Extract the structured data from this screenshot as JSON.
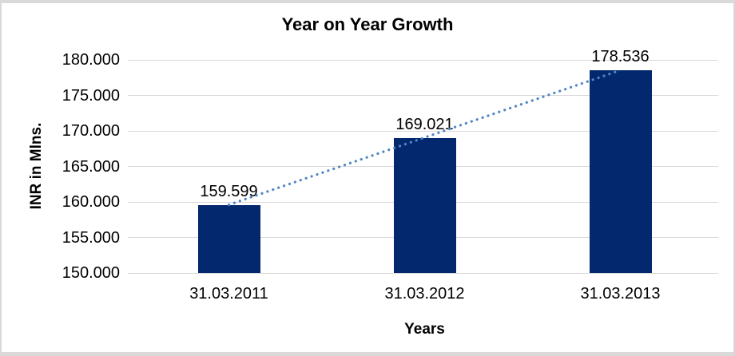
{
  "frame": {
    "background": "#ffffff",
    "border_color": "#d9d9d9"
  },
  "chart_data": {
    "type": "bar",
    "title": "Year on Year Growth",
    "xlabel": "Years",
    "ylabel": "INR in Mlns.",
    "categories": [
      "31.03.2011",
      "31.03.2012",
      "31.03.2013"
    ],
    "values": [
      159.599,
      169.021,
      178.536
    ],
    "data_labels": [
      "159.599",
      "169.021",
      "178.536"
    ],
    "ylim": [
      150,
      180
    ],
    "y_ticks": [
      {
        "value": 180,
        "label": "180.000"
      },
      {
        "value": 175,
        "label": "175.000"
      },
      {
        "value": 170,
        "label": "170.000"
      },
      {
        "value": 165,
        "label": "165.000"
      },
      {
        "value": 160,
        "label": "160.000"
      },
      {
        "value": 155,
        "label": "155.000"
      },
      {
        "value": 150,
        "label": "150.000"
      }
    ],
    "grid": true,
    "legend": "none",
    "bar_color": "#04286d",
    "gridline_color": "#d9d9d9",
    "text_color": "#000000",
    "trendline": {
      "type": "linear",
      "style": "dotted",
      "color": "#4f86c6",
      "from_value": 159.599,
      "to_value": 178.536
    }
  }
}
